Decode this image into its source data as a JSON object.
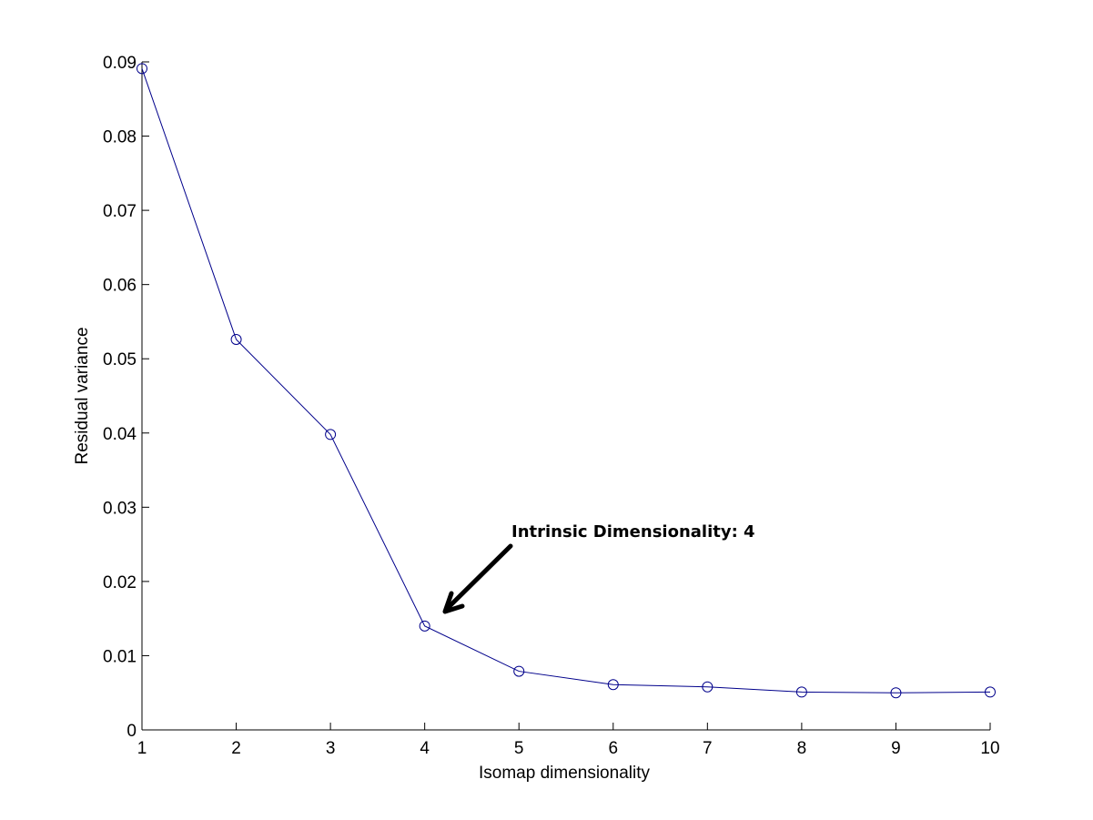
{
  "chart_data": {
    "type": "line",
    "title": "",
    "xlabel": "Isomap dimensionality",
    "ylabel": "Residual variance",
    "x": [
      1,
      2,
      3,
      4,
      5,
      6,
      7,
      8,
      9,
      10
    ],
    "series": [
      {
        "values": [
          0.0891,
          0.0526,
          0.0398,
          0.014,
          0.0079,
          0.0061,
          0.0058,
          0.0051,
          0.005,
          0.0051
        ],
        "color": "#00008B",
        "marker": "circle"
      }
    ],
    "xlim": [
      1,
      10
    ],
    "ylim": [
      0,
      0.09
    ],
    "xticks": [
      1,
      2,
      3,
      4,
      5,
      6,
      7,
      8,
      9,
      10
    ],
    "xtick_labels": [
      "1",
      "2",
      "3",
      "4",
      "5",
      "6",
      "7",
      "8",
      "9",
      "10"
    ],
    "yticks": [
      0,
      0.01,
      0.02,
      0.03,
      0.04,
      0.05,
      0.06,
      0.07,
      0.08,
      0.09
    ],
    "ytick_labels": [
      "0",
      "0.01",
      "0.02",
      "0.03",
      "0.04",
      "0.05",
      "0.06",
      "0.07",
      "0.08",
      "0.09"
    ],
    "grid": false,
    "annotation": {
      "text": "Intrinsic Dimensionality: 4",
      "points_to_x": 4
    }
  }
}
